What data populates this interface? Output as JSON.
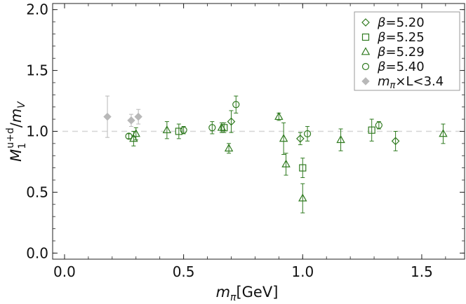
{
  "chart_data": {
    "type": "scatter",
    "xlabel": "m_π[GeV]",
    "xlabel_parts": {
      "base": "m",
      "sub": "π",
      "rest": "[GeV]"
    },
    "ylabel": "M_1^{u+d}/m_V",
    "ylabel_parts": {
      "base": "M",
      "sub": "1",
      "sup": "u+d",
      "slash": "/",
      "base2": "m",
      "sub2": "V"
    },
    "xlim": [
      -0.05,
      1.68
    ],
    "ylim": [
      -0.05,
      2.05
    ],
    "xticks": [
      0.0,
      0.5,
      1.0,
      1.5
    ],
    "xtick_labels": [
      "0.0",
      "0.5",
      "1.0",
      "1.5"
    ],
    "yticks": [
      0.0,
      0.5,
      1.0,
      1.5,
      2.0
    ],
    "ytick_labels": [
      "0.0",
      "0.5",
      "1.0",
      "1.5",
      "2.0"
    ],
    "reference_line": {
      "y": 1.0,
      "style": "dashed"
    },
    "legend_position": "top-right",
    "colors": {
      "green": "#2f7a1f",
      "gray": "#b8b8b8"
    },
    "series": [
      {
        "name": "β=5.20",
        "label": "β=5.20",
        "label_beta": "β",
        "label_value": "=5.20",
        "marker": "diamond",
        "color": "#2f7a1f",
        "points": [
          {
            "x": 0.7,
            "y": 1.08,
            "err": 0.09
          },
          {
            "x": 0.99,
            "y": 0.94,
            "err": 0.05
          },
          {
            "x": 1.39,
            "y": 0.92,
            "err": 0.08
          }
        ]
      },
      {
        "name": "β=5.25",
        "label": "β=5.25",
        "label_beta": "β",
        "label_value": "=5.25",
        "marker": "square",
        "color": "#2f7a1f",
        "points": [
          {
            "x": 0.48,
            "y": 1.0,
            "err": 0.06
          },
          {
            "x": 0.67,
            "y": 1.03,
            "err": 0.04
          },
          {
            "x": 1.0,
            "y": 0.7,
            "err": 0.08
          },
          {
            "x": 1.29,
            "y": 1.01,
            "err": 0.09
          }
        ]
      },
      {
        "name": "β=5.29",
        "label": "β=5.29",
        "label_beta": "β",
        "label_value": "=5.29",
        "marker": "triangle",
        "color": "#2f7a1f",
        "points": [
          {
            "x": 0.29,
            "y": 0.94,
            "err": 0.06
          },
          {
            "x": 0.3,
            "y": 0.98,
            "err": 0.05
          },
          {
            "x": 0.43,
            "y": 1.01,
            "err": 0.07
          },
          {
            "x": 0.66,
            "y": 1.03,
            "err": 0.04
          },
          {
            "x": 0.69,
            "y": 0.86,
            "err": 0.04
          },
          {
            "x": 0.9,
            "y": 1.12,
            "err": 0.03
          },
          {
            "x": 0.92,
            "y": 0.94,
            "err": 0.13
          },
          {
            "x": 0.93,
            "y": 0.73,
            "err": 0.09
          },
          {
            "x": 1.0,
            "y": 0.45,
            "err": 0.12
          },
          {
            "x": 1.16,
            "y": 0.93,
            "err": 0.09
          },
          {
            "x": 1.59,
            "y": 0.98,
            "err": 0.08
          }
        ]
      },
      {
        "name": "β=5.40",
        "label": "β=5.40",
        "label_beta": "β",
        "label_value": "=5.40",
        "marker": "circle",
        "color": "#2f7a1f",
        "points": [
          {
            "x": 0.27,
            "y": 0.96,
            "err": 0.02
          },
          {
            "x": 0.5,
            "y": 1.01,
            "err": 0.03
          },
          {
            "x": 0.62,
            "y": 1.03,
            "err": 0.05
          },
          {
            "x": 0.72,
            "y": 1.22,
            "err": 0.07
          },
          {
            "x": 1.02,
            "y": 0.98,
            "err": 0.06
          },
          {
            "x": 1.32,
            "y": 1.05,
            "err": 0.03
          }
        ]
      },
      {
        "name": "m_π×L<3.4",
        "label": "mπ×L<3.4",
        "label_m": "m",
        "label_sub": "π",
        "label_rest": "×L<3.4",
        "marker": "filled-diamond",
        "color": "#b8b8b8",
        "points": [
          {
            "x": 0.18,
            "y": 1.12,
            "err": 0.17
          },
          {
            "x": 0.28,
            "y": 1.09,
            "err": 0.05
          },
          {
            "x": 0.31,
            "y": 1.12,
            "err": 0.06
          }
        ]
      }
    ]
  }
}
